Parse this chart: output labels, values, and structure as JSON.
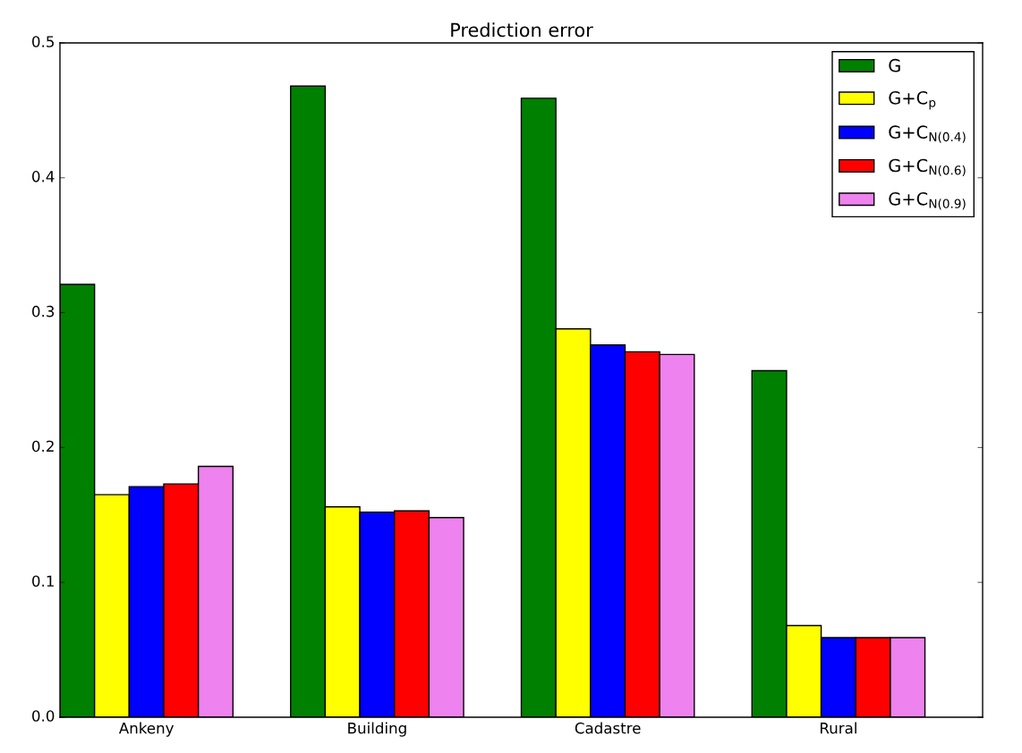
{
  "chart_data": {
    "type": "bar",
    "title": "Prediction error",
    "categories": [
      "Ankeny",
      "Building",
      "Cadastre",
      "Rural"
    ],
    "series": [
      {
        "name": "G",
        "color": "#008000",
        "values": [
          0.321,
          0.468,
          0.459,
          0.257
        ]
      },
      {
        "name": "G+C$_{p}$",
        "color": "#ffff00",
        "values": [
          0.165,
          0.156,
          0.288,
          0.068
        ]
      },
      {
        "name": "G+C$_{N(0.4)}$",
        "color": "#0000ff",
        "values": [
          0.171,
          0.152,
          0.276,
          0.059
        ]
      },
      {
        "name": "G+C$_{N(0.6)}$",
        "color": "#ff0000",
        "values": [
          0.173,
          0.153,
          0.271,
          0.059
        ]
      },
      {
        "name": "G+C$_{N(0.9)}$",
        "color": "#ee82ee",
        "values": [
          0.186,
          0.148,
          0.269,
          0.059
        ]
      }
    ],
    "ylim": [
      0,
      0.5
    ],
    "yticks": [
      {
        "value": 0,
        "label": "0.0"
      },
      0.1,
      0.2,
      0.3,
      0.4,
      0.5
    ],
    "legend": "top right",
    "grid": false
  }
}
